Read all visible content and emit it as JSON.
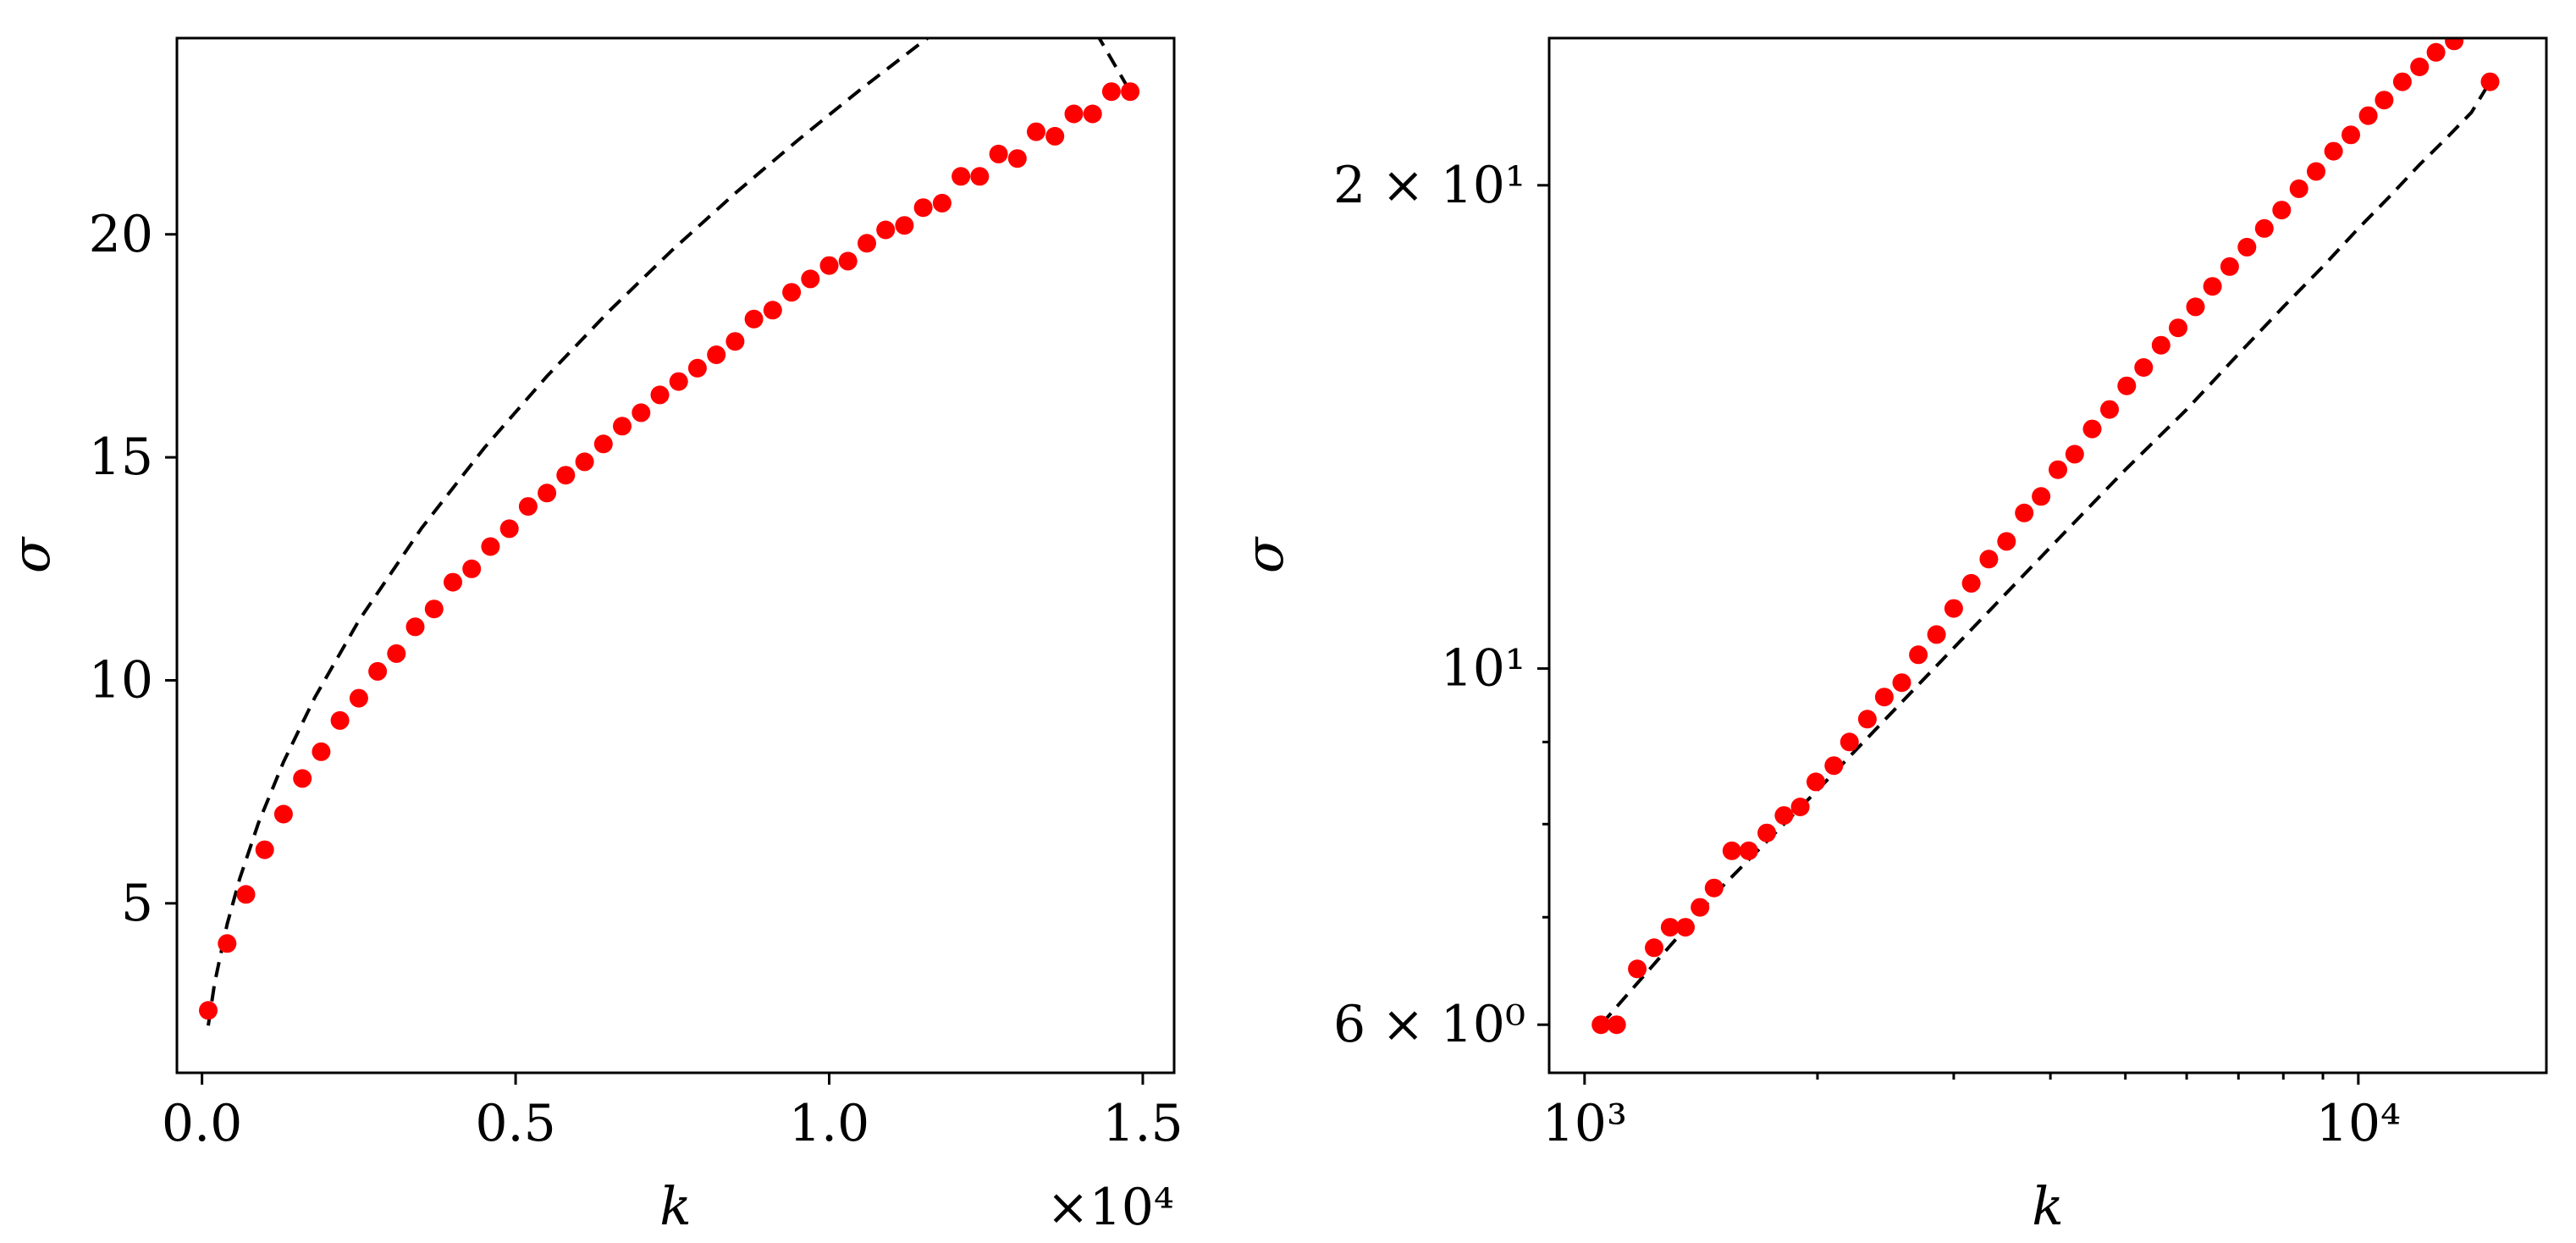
{
  "chart_data": [
    {
      "type": "scatter",
      "xlabel": "k",
      "ylabel": "σ",
      "x_offset_label": "×10⁴",
      "xlim": [
        -0.04,
        1.55
      ],
      "ylim": [
        1.2,
        24.4
      ],
      "xscale": "linear",
      "yscale": "linear",
      "grid": false,
      "x_ticks": [
        0.0,
        0.5,
        1.0,
        1.5
      ],
      "x_tick_labels": [
        "0.0",
        "0.5",
        "1.0",
        "1.5"
      ],
      "y_ticks": [
        5,
        10,
        15,
        20
      ],
      "y_tick_labels": [
        "5",
        "10",
        "15",
        "20"
      ],
      "series": [
        {
          "marker": "circle",
          "color": "#ff0000",
          "x": [
            0.01,
            0.04,
            0.07,
            0.1,
            0.13,
            0.16,
            0.19,
            0.22,
            0.25,
            0.28,
            0.31,
            0.34,
            0.37,
            0.4,
            0.43,
            0.46,
            0.49,
            0.52,
            0.55,
            0.58,
            0.61,
            0.64,
            0.67,
            0.7,
            0.73,
            0.76,
            0.79,
            0.82,
            0.85,
            0.88,
            0.91,
            0.94,
            0.97,
            1.0,
            1.03,
            1.06,
            1.09,
            1.12,
            1.15,
            1.18,
            1.21,
            1.24,
            1.27,
            1.3,
            1.33,
            1.36,
            1.39,
            1.42,
            1.45,
            1.48
          ],
          "y": [
            2.6,
            4.1,
            5.2,
            6.2,
            7.0,
            7.8,
            8.4,
            9.1,
            9.6,
            10.2,
            10.6,
            11.2,
            11.6,
            12.2,
            12.5,
            13.0,
            13.4,
            13.9,
            14.2,
            14.6,
            14.9,
            15.3,
            15.7,
            16.0,
            16.4,
            16.7,
            17.0,
            17.3,
            17.6,
            18.1,
            18.3,
            18.7,
            19.0,
            19.3,
            19.4,
            19.8,
            20.1,
            20.2,
            20.6,
            20.7,
            21.3,
            21.3,
            21.8,
            21.7,
            22.3,
            22.2,
            22.7,
            22.7,
            23.2,
            23.2
          ]
        },
        {
          "style": "dashed",
          "color": "#000000",
          "x": [
            0.01,
            0.02,
            0.04,
            0.06,
            0.09,
            0.13,
            0.18,
            0.25,
            0.35,
            0.45,
            0.55,
            0.65,
            0.75,
            0.85,
            0.95,
            1.05,
            1.15,
            1.25,
            1.35,
            1.48
          ],
          "y": [
            2.26,
            3.21,
            4.53,
            5.55,
            6.8,
            8.17,
            9.62,
            11.34,
            13.41,
            15.21,
            16.82,
            18.29,
            19.65,
            20.92,
            22.11,
            23.25,
            24.33,
            25.36,
            26.36,
            23.2
          ]
        }
      ]
    },
    {
      "type": "scatter",
      "xlabel": "k",
      "ylabel": "σ",
      "xlim": [
        900,
        17500
      ],
      "ylim": [
        5.6,
        24.7
      ],
      "xscale": "log",
      "yscale": "log",
      "grid": false,
      "x_ticks": [
        1000,
        10000
      ],
      "x_tick_labels": [
        "10³",
        "10⁴"
      ],
      "y_ticks": [
        6,
        10,
        20
      ],
      "y_tick_labels": [
        "6 × 10⁰",
        "10¹",
        "2 × 10¹"
      ],
      "series": [
        {
          "marker": "circle",
          "color": "#ff0000",
          "x": [
            1050,
            1100,
            1170,
            1230,
            1290,
            1350,
            1410,
            1470,
            1550,
            1630,
            1720,
            1810,
            1900,
            1990,
            2100,
            2200,
            2320,
            2440,
            2570,
            2700,
            2850,
            3000,
            3160,
            3330,
            3510,
            3700,
            3890,
            4090,
            4300,
            4530,
            4770,
            5020,
            5280,
            5560,
            5850,
            6160,
            6480,
            6820,
            7180,
            7560,
            7960,
            8380,
            8820,
            9290,
            9780,
            10300,
            10800,
            11400,
            12000,
            12600,
            13300,
            14000,
            14800
          ],
          "y": [
            6.0,
            6.0,
            6.5,
            6.7,
            6.9,
            6.9,
            7.1,
            7.3,
            7.7,
            7.7,
            7.9,
            8.1,
            8.2,
            8.5,
            8.7,
            9.0,
            9.3,
            9.6,
            9.8,
            10.2,
            10.5,
            10.9,
            11.3,
            11.7,
            12.0,
            12.5,
            12.8,
            13.3,
            13.6,
            14.1,
            14.5,
            15.0,
            15.4,
            15.9,
            16.3,
            16.8,
            17.3,
            17.8,
            18.3,
            18.8,
            19.3,
            19.9,
            20.4,
            21.0,
            21.5,
            22.1,
            22.6,
            23.2,
            23.7,
            24.2,
            24.6,
            25.0,
            23.2
          ]
        },
        {
          "style": "dashed",
          "color": "#000000",
          "x": [
            1050,
            1500,
            2000,
            3000,
            4000,
            5000,
            6000,
            7000,
            8000,
            9000,
            10000,
            11000,
            12000,
            13000,
            14000,
            14800
          ],
          "y": [
            6.0,
            7.3,
            8.4,
            10.3,
            11.9,
            13.3,
            14.5,
            15.7,
            16.8,
            17.8,
            18.8,
            19.7,
            20.6,
            21.4,
            22.2,
            23.2
          ]
        }
      ]
    }
  ]
}
